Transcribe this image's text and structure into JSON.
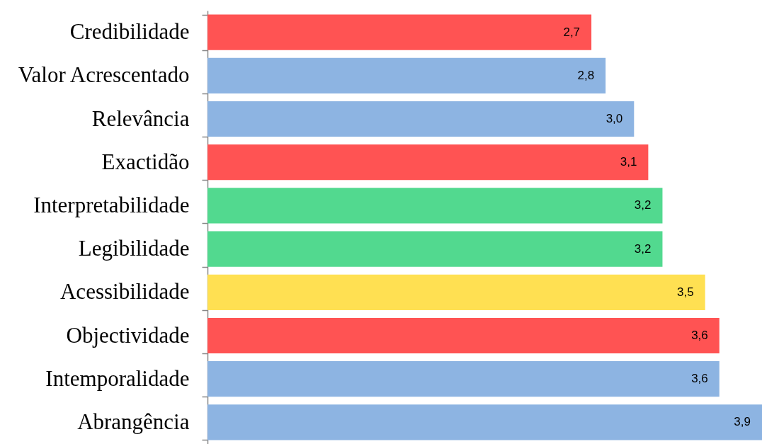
{
  "chart_data": {
    "type": "bar",
    "orientation": "horizontal",
    "categories": [
      "Credibilidade",
      "Valor Acrescentado",
      "Relevância",
      "Exactidão",
      "Interpretabilidade",
      "Legibilidade",
      "Acessibilidade",
      "Objectividade",
      "Intemporalidade",
      "Abrangência"
    ],
    "values": [
      2.7,
      2.8,
      3.0,
      3.1,
      3.2,
      3.2,
      3.5,
      3.6,
      3.6,
      3.9
    ],
    "colors": [
      "#ff5353",
      "#8db4e2",
      "#8db4e2",
      "#ff5353",
      "#52d98f",
      "#52d98f",
      "#ffe052",
      "#ff5353",
      "#8db4e2",
      "#8db4e2"
    ],
    "value_labels": [
      "2,7",
      "2,8",
      "3,0",
      "3,1",
      "3,2",
      "3,2",
      "3,5",
      "3,6",
      "3,6",
      "3,9"
    ]
  }
}
